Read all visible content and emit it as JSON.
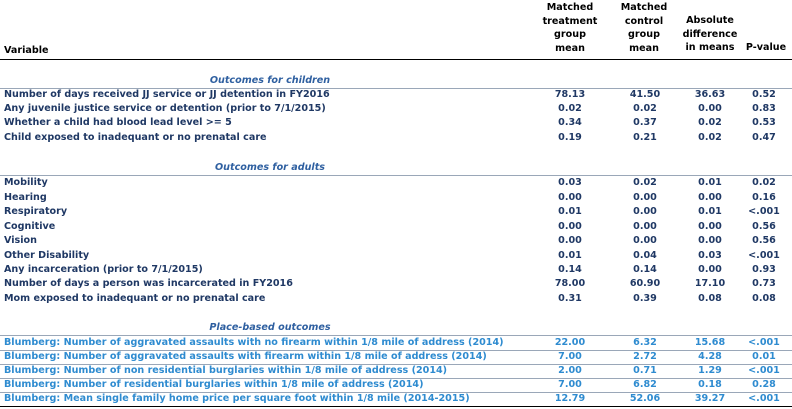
{
  "header": {
    "variable": "Variable",
    "treatment": [
      "Matched",
      "treatment",
      "group",
      "mean"
    ],
    "control": [
      "Matched",
      "control",
      "group",
      "mean"
    ],
    "difference": [
      "Absolute",
      "difference",
      "in means"
    ],
    "pvalue": "P-value"
  },
  "sections": [
    {
      "title": "Outcomes for children",
      "rows": [
        {
          "label": "Number of days received JJ service or JJ detention in FY2016",
          "treat": "78.13",
          "control": "41.50",
          "diff": "36.63",
          "p": "0.52"
        },
        {
          "label": "Any juvenile justice service or detention (prior to 7/1/2015)",
          "treat": "0.02",
          "control": "0.02",
          "diff": "0.00",
          "p": "0.83"
        },
        {
          "label": "Whether a child had blood lead level >= 5",
          "treat": "0.34",
          "control": "0.37",
          "diff": "0.02",
          "p": "0.53"
        },
        {
          "label": "Child exposed to inadequant or no prenatal care",
          "treat": "0.19",
          "control": "0.21",
          "diff": "0.02",
          "p": "0.47"
        }
      ]
    },
    {
      "title": "Outcomes for adults",
      "rows": [
        {
          "label": "Mobility",
          "treat": "0.03",
          "control": "0.02",
          "diff": "0.01",
          "p": "0.02"
        },
        {
          "label": "Hearing",
          "treat": "0.00",
          "control": "0.00",
          "diff": "0.00",
          "p": "0.16"
        },
        {
          "label": "Respiratory",
          "treat": "0.01",
          "control": "0.00",
          "diff": "0.01",
          "p": "<.001"
        },
        {
          "label": "Cognitive",
          "treat": "0.00",
          "control": "0.00",
          "diff": "0.00",
          "p": "0.56"
        },
        {
          "label": "Vision",
          "treat": "0.00",
          "control": "0.00",
          "diff": "0.00",
          "p": "0.56"
        },
        {
          "label": "Other Disability",
          "treat": "0.01",
          "control": "0.04",
          "diff": "0.03",
          "p": "<.001"
        },
        {
          "label": "Any incarceration (prior to 7/1/2015)",
          "treat": "0.14",
          "control": "0.14",
          "diff": "0.00",
          "p": "0.93"
        },
        {
          "label": "Number of days a person was incarcerated in FY2016",
          "treat": "78.00",
          "control": "60.90",
          "diff": "17.10",
          "p": "0.73"
        },
        {
          "label": "Mom exposed to inadequant or no prenatal care",
          "treat": "0.31",
          "control": "0.39",
          "diff": "0.08",
          "p": "0.08"
        }
      ]
    },
    {
      "title": "Place-based outcomes",
      "rows": [
        {
          "label": "Blumberg: Number of aggravated assaults with no firearm within 1/8 mile of address (2014)",
          "treat": "22.00",
          "control": "6.32",
          "diff": "15.68",
          "p": "<.001"
        },
        {
          "label": "Blumberg: Number of aggravated assaults with firearm within 1/8 mile of address (2014)",
          "treat": "7.00",
          "control": "2.72",
          "diff": "4.28",
          "p": "0.01"
        },
        {
          "label": "Blumberg: Number of non residential burglaries within 1/8 mile of address (2014)",
          "treat": "2.00",
          "control": "0.71",
          "diff": "1.29",
          "p": "<.001"
        },
        {
          "label": "Blumberg: Number of residential burglaries within 1/8 mile of address (2014)",
          "treat": "7.00",
          "control": "6.82",
          "diff": "0.18",
          "p": "0.28"
        },
        {
          "label": "Blumberg: Mean single family home price per square foot within 1/8 mile (2014-2015)",
          "treat": "12.79",
          "control": "52.06",
          "diff": "39.27",
          "p": "<.001"
        }
      ]
    }
  ]
}
